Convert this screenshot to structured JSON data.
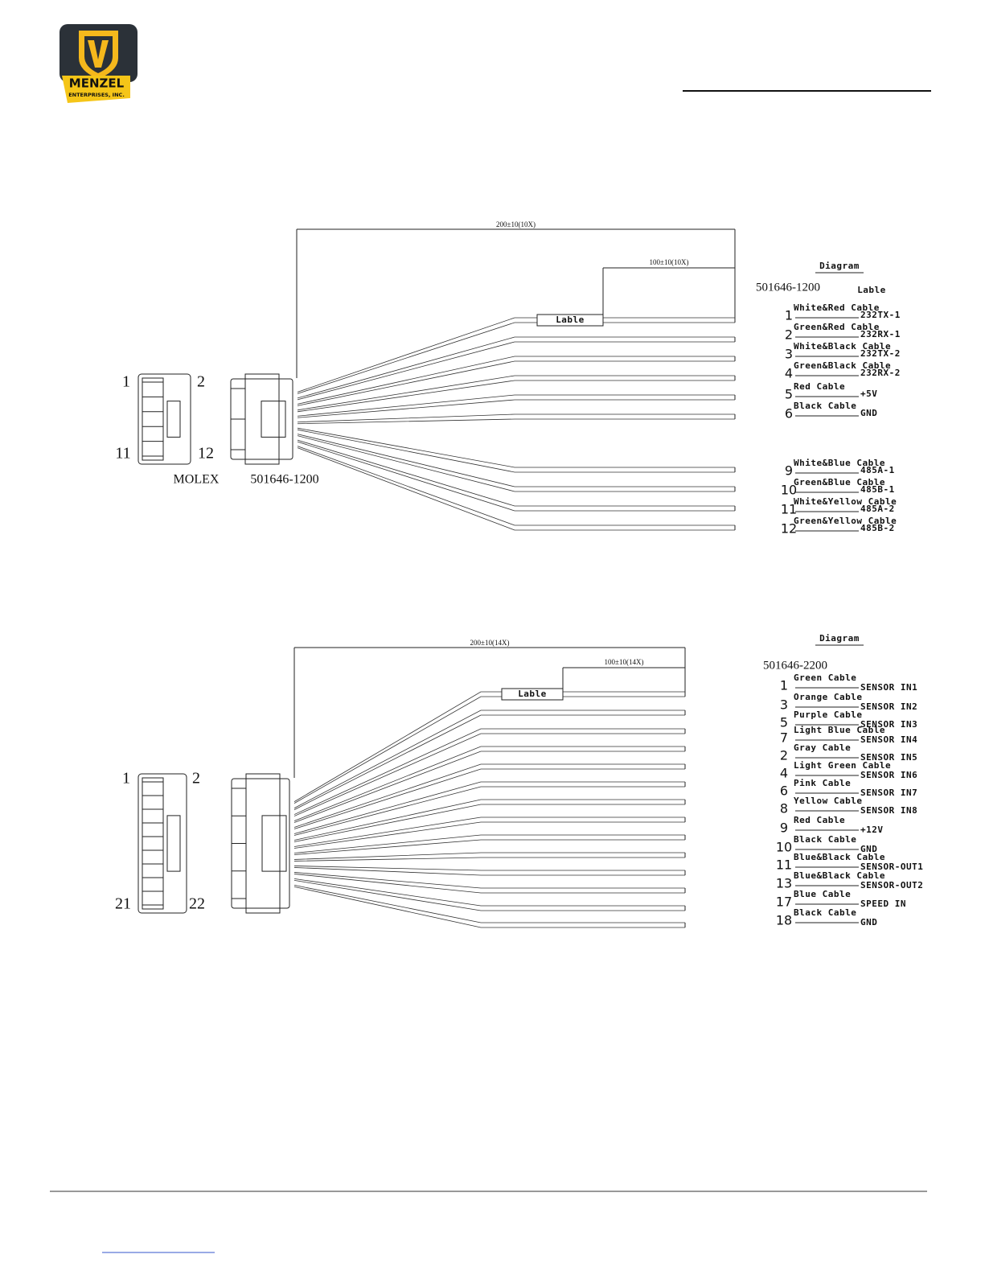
{
  "logo": {
    "name": "MENZEL",
    "subtitle": "ENTERPRISES, INC."
  },
  "diagrams": [
    {
      "dimension_total": "200±10(10X)",
      "dimension_label": "100±10(10X)",
      "label_tag": "Lable",
      "pin_labels": [
        "1",
        "2",
        "11",
        "12"
      ],
      "maker": "MOLEX",
      "part_number": "501646-1200",
      "legend": {
        "title": "Diagram",
        "part_number": "501646-1200",
        "label_tag": "Lable",
        "pins": [
          {
            "pin": "1",
            "cable": "White&Red Cable",
            "signal": "232TX-1"
          },
          {
            "pin": "2",
            "cable": "Green&Red Cable",
            "signal": "232RX-1"
          },
          {
            "pin": "3",
            "cable": "White&Black Cable",
            "signal": "232TX-2"
          },
          {
            "pin": "4",
            "cable": "Green&Black Cable",
            "signal": "232RX-2"
          },
          {
            "pin": "5",
            "cable": "Red Cable",
            "signal": "+5V"
          },
          {
            "pin": "6",
            "cable": "Black Cable",
            "signal": "GND"
          },
          {
            "pin": "9",
            "cable": "White&Blue Cable",
            "signal": "485A-1"
          },
          {
            "pin": "10",
            "cable": "Green&Blue Cable",
            "signal": "485B-1"
          },
          {
            "pin": "11",
            "cable": "White&Yellow Cable",
            "signal": "485A-2"
          },
          {
            "pin": "12",
            "cable": "Green&Yellow Cable",
            "signal": "485B-2"
          }
        ]
      }
    },
    {
      "dimension_total": "200±10(14X)",
      "dimension_label": "100±10(14X)",
      "label_tag": "Lable",
      "pin_labels": [
        "1",
        "2",
        "21",
        "22"
      ],
      "legend": {
        "title": "Diagram",
        "part_number": "501646-2200",
        "pins": [
          {
            "pin": "1",
            "cable": "Green Cable",
            "signal": "SENSOR IN1"
          },
          {
            "pin": "3",
            "cable": "Orange Cable",
            "signal": "SENSOR IN2"
          },
          {
            "pin": "5",
            "cable": "Purple Cable",
            "signal": "SENSOR IN3"
          },
          {
            "pin": "7",
            "cable": "Light Blue Cable",
            "signal": "SENSOR IN4"
          },
          {
            "pin": "2",
            "cable": "Gray Cable",
            "signal": "SENSOR IN5"
          },
          {
            "pin": "4",
            "cable": "Light Green Cable",
            "signal": "SENSOR IN6"
          },
          {
            "pin": "6",
            "cable": "Pink Cable",
            "signal": "SENSOR IN7"
          },
          {
            "pin": "8",
            "cable": "Yellow Cable",
            "signal": "SENSOR IN8"
          },
          {
            "pin": "9",
            "cable": "Red Cable",
            "signal": "+12V"
          },
          {
            "pin": "10",
            "cable": "Black Cable",
            "signal": "GND"
          },
          {
            "pin": "11",
            "cable": "Blue&Black Cable",
            "signal": "SENSOR-OUT1"
          },
          {
            "pin": "13",
            "cable": "Blue&Black Cable",
            "signal": "SENSOR-OUT2"
          },
          {
            "pin": "17",
            "cable": "Blue Cable",
            "signal": "SPEED IN"
          },
          {
            "pin": "18",
            "cable": "Black Cable",
            "signal": "GND"
          }
        ]
      }
    }
  ]
}
